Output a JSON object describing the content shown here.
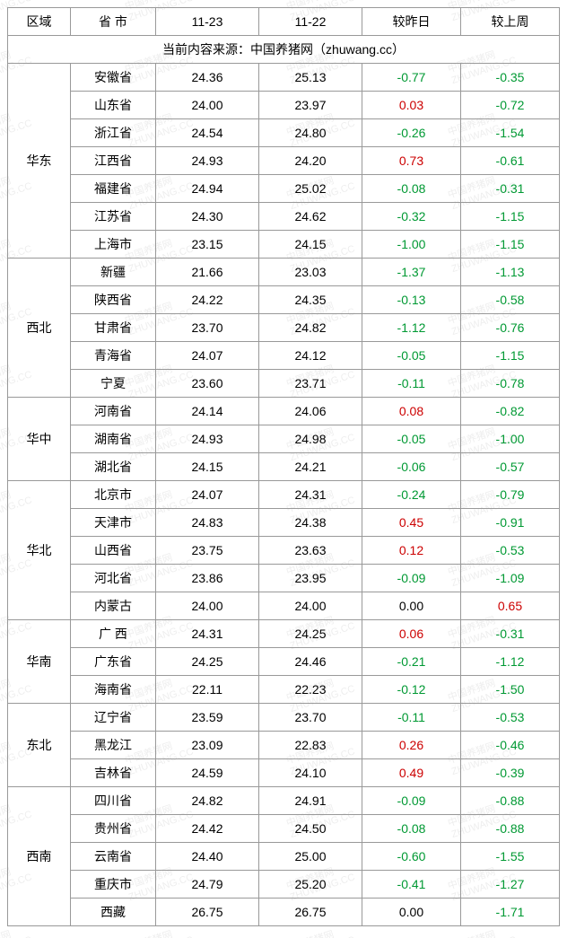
{
  "colors": {
    "negative": "#009933",
    "positive": "#cc0000",
    "zero": "#000000",
    "border": "#999999",
    "watermark": "#eeeeee",
    "text": "#000000"
  },
  "headers": {
    "region": "区域",
    "province": "省 市",
    "date1": "11-23",
    "date2": "11-22",
    "vs_yesterday": "较昨日",
    "vs_lastweek": "较上周"
  },
  "source_line": "当前内容来源：中国养猪网（zhuwang.cc）",
  "watermark_text_cn": "中国养猪网",
  "watermark_text_en": "ZHUWANG.CC",
  "regions": [
    {
      "name": "华东",
      "rows": [
        {
          "prov": "安徽省",
          "d1": "24.36",
          "d2": "25.13",
          "dy": "-0.77",
          "dw": "-0.35"
        },
        {
          "prov": "山东省",
          "d1": "24.00",
          "d2": "23.97",
          "dy": "0.03",
          "dw": "-0.72"
        },
        {
          "prov": "浙江省",
          "d1": "24.54",
          "d2": "24.80",
          "dy": "-0.26",
          "dw": "-1.54"
        },
        {
          "prov": "江西省",
          "d1": "24.93",
          "d2": "24.20",
          "dy": "0.73",
          "dw": "-0.61"
        },
        {
          "prov": "福建省",
          "d1": "24.94",
          "d2": "25.02",
          "dy": "-0.08",
          "dw": "-0.31"
        },
        {
          "prov": "江苏省",
          "d1": "24.30",
          "d2": "24.62",
          "dy": "-0.32",
          "dw": "-1.15"
        },
        {
          "prov": "上海市",
          "d1": "23.15",
          "d2": "24.15",
          "dy": "-1.00",
          "dw": "-1.15"
        }
      ]
    },
    {
      "name": "西北",
      "rows": [
        {
          "prov": "新疆",
          "d1": "21.66",
          "d2": "23.03",
          "dy": "-1.37",
          "dw": "-1.13"
        },
        {
          "prov": "陕西省",
          "d1": "24.22",
          "d2": "24.35",
          "dy": "-0.13",
          "dw": "-0.58"
        },
        {
          "prov": "甘肃省",
          "d1": "23.70",
          "d2": "24.82",
          "dy": "-1.12",
          "dw": "-0.76"
        },
        {
          "prov": "青海省",
          "d1": "24.07",
          "d2": "24.12",
          "dy": "-0.05",
          "dw": "-1.15"
        },
        {
          "prov": "宁夏",
          "d1": "23.60",
          "d2": "23.71",
          "dy": "-0.11",
          "dw": "-0.78"
        }
      ]
    },
    {
      "name": "华中",
      "rows": [
        {
          "prov": "河南省",
          "d1": "24.14",
          "d2": "24.06",
          "dy": "0.08",
          "dw": "-0.82"
        },
        {
          "prov": "湖南省",
          "d1": "24.93",
          "d2": "24.98",
          "dy": "-0.05",
          "dw": "-1.00"
        },
        {
          "prov": "湖北省",
          "d1": "24.15",
          "d2": "24.21",
          "dy": "-0.06",
          "dw": "-0.57"
        }
      ]
    },
    {
      "name": "华北",
      "rows": [
        {
          "prov": "北京市",
          "d1": "24.07",
          "d2": "24.31",
          "dy": "-0.24",
          "dw": "-0.79"
        },
        {
          "prov": "天津市",
          "d1": "24.83",
          "d2": "24.38",
          "dy": "0.45",
          "dw": "-0.91"
        },
        {
          "prov": "山西省",
          "d1": "23.75",
          "d2": "23.63",
          "dy": "0.12",
          "dw": "-0.53"
        },
        {
          "prov": "河北省",
          "d1": "23.86",
          "d2": "23.95",
          "dy": "-0.09",
          "dw": "-1.09"
        },
        {
          "prov": "内蒙古",
          "d1": "24.00",
          "d2": "24.00",
          "dy": "0.00",
          "dw": "0.65"
        }
      ]
    },
    {
      "name": "华南",
      "rows": [
        {
          "prov": "广 西",
          "d1": "24.31",
          "d2": "24.25",
          "dy": "0.06",
          "dw": "-0.31"
        },
        {
          "prov": "广东省",
          "d1": "24.25",
          "d2": "24.46",
          "dy": "-0.21",
          "dw": "-1.12"
        },
        {
          "prov": "海南省",
          "d1": "22.11",
          "d2": "22.23",
          "dy": "-0.12",
          "dw": "-1.50"
        }
      ]
    },
    {
      "name": "东北",
      "rows": [
        {
          "prov": "辽宁省",
          "d1": "23.59",
          "d2": "23.70",
          "dy": "-0.11",
          "dw": "-0.53"
        },
        {
          "prov": "黑龙江",
          "d1": "23.09",
          "d2": "22.83",
          "dy": "0.26",
          "dw": "-0.46"
        },
        {
          "prov": "吉林省",
          "d1": "24.59",
          "d2": "24.10",
          "dy": "0.49",
          "dw": "-0.39"
        }
      ]
    },
    {
      "name": "西南",
      "rows": [
        {
          "prov": "四川省",
          "d1": "24.82",
          "d2": "24.91",
          "dy": "-0.09",
          "dw": "-0.88"
        },
        {
          "prov": "贵州省",
          "d1": "24.42",
          "d2": "24.50",
          "dy": "-0.08",
          "dw": "-0.88"
        },
        {
          "prov": "云南省",
          "d1": "24.40",
          "d2": "25.00",
          "dy": "-0.60",
          "dw": "-1.55"
        },
        {
          "prov": "重庆市",
          "d1": "24.79",
          "d2": "25.20",
          "dy": "-0.41",
          "dw": "-1.27"
        },
        {
          "prov": "西藏",
          "d1": "26.75",
          "d2": "26.75",
          "dy": "0.00",
          "dw": "-1.71"
        }
      ]
    }
  ]
}
